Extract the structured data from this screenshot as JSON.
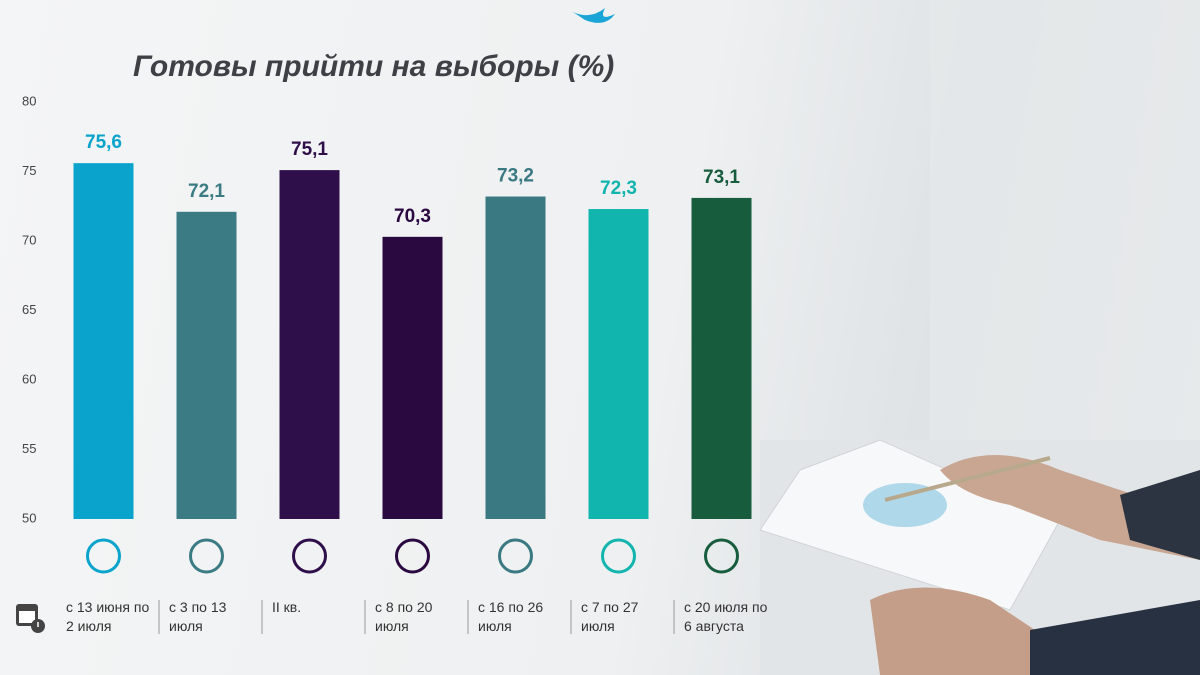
{
  "chart_data": {
    "type": "bar",
    "title": "Готовы прийти на выборы (%)",
    "categories": [
      "с 13 июня по 2 июля",
      "с 3 по 13 июля",
      "II кв.",
      "с 8 по 20 июля",
      "с 16 по 26 июля",
      "с 7 по 27 июля",
      "с 20 июля по 6 августа"
    ],
    "values": [
      75.6,
      72.1,
      75.1,
      70.3,
      73.2,
      72.3,
      73.1
    ],
    "value_labels": [
      "75,6",
      "72,1",
      "75,1",
      "70,3",
      "73,2",
      "72,3",
      "73,1"
    ],
    "colors": [
      "#0aa3cc",
      "#3b7b84",
      "#2f0f4a",
      "#2a0840",
      "#3a7882",
      "#12b5ae",
      "#175c3d"
    ],
    "ylim": [
      50,
      80
    ],
    "yticks": [
      50,
      55,
      60,
      65,
      70,
      75,
      80
    ],
    "grid": false
  }
}
